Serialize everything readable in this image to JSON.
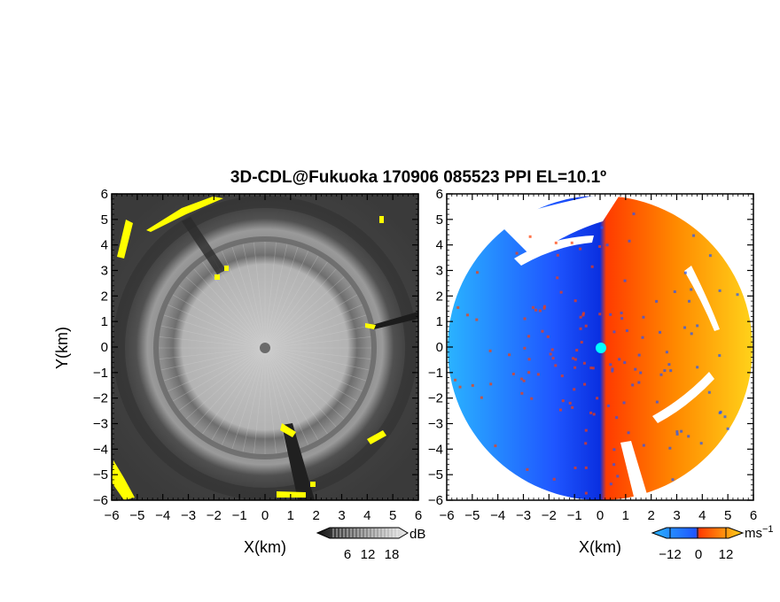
{
  "chart_data": {
    "type": "heatmap",
    "title": "3D-CDL@Fukuoka 170906 085523 PPI EL=10.1º",
    "panels": [
      {
        "name": "reflectivity",
        "xlabel": "X(km)",
        "ylabel": "Y(km)",
        "xlim": [
          -6,
          6
        ],
        "ylim": [
          -6,
          6
        ],
        "xticks": [
          "−6",
          "−5",
          "−4",
          "−3",
          "−2",
          "−1",
          "0",
          "1",
          "2",
          "3",
          "4",
          "5",
          "6"
        ],
        "yticks": [
          "−6",
          "−5",
          "−4",
          "−3",
          "−2",
          "−1",
          "0",
          "1",
          "2",
          "3",
          "4",
          "5",
          "6"
        ],
        "colorbar": {
          "unit": "dB",
          "ticks": [
            "6",
            "12",
            "18"
          ],
          "colormap": "grayscale",
          "highlight_color": "#ffff00"
        }
      },
      {
        "name": "doppler-velocity",
        "xlabel": "X(km)",
        "xlim": [
          -6,
          6
        ],
        "ylim": [
          -6,
          6
        ],
        "xticks": [
          "−6",
          "−5",
          "−4",
          "−3",
          "−2",
          "−1",
          "0",
          "1",
          "2",
          "3",
          "4",
          "5",
          "6"
        ],
        "yticks": [
          "−6",
          "−5",
          "−4",
          "−3",
          "−2",
          "−1",
          "0",
          "1",
          "2",
          "3",
          "4",
          "5",
          "6"
        ],
        "colorbar": {
          "unit": "ms",
          "unit_exponent": "−1",
          "ticks": [
            "−12",
            "0",
            "12"
          ],
          "colormap": "cyan-blue-red-yellow"
        }
      }
    ],
    "colors": {
      "approach": "#1f56ff",
      "recede": "#ff3b00",
      "far_approach": "#2ab3ff",
      "far_recede": "#ffc21a",
      "radar_site": "#00ffff"
    }
  }
}
